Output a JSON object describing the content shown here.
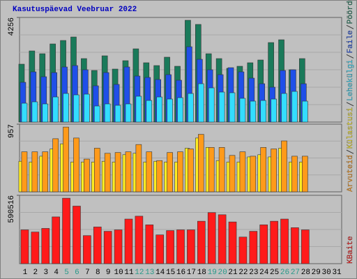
{
  "title": "Kasutuspäevad Veebruar 2022",
  "chart_data": [
    {
      "type": "bar",
      "ylim": [
        0,
        4256
      ],
      "yticks": [
        4256
      ],
      "series": [
        {
          "name": "Pöördumisi",
          "color": "#1a7a5a",
          "values": [
            2355,
            2894,
            2780,
            3178,
            3319,
            3461,
            2582,
            2099,
            2695,
            2156,
            2497,
            2979,
            2412,
            2298,
            2639,
            2270,
            4142,
            3972,
            2780,
            2582,
            2185,
            2270,
            2412,
            2525,
            3234,
            3348,
            2128,
            2582,
            null,
            null,
            null
          ]
        },
        {
          "name": "Faile",
          "color": "#1f4fe8",
          "values": [
            1617,
            2043,
            1844,
            2014,
            2241,
            2298,
            2128,
            1475,
            2014,
            1532,
            2241,
            1872,
            1816,
            1731,
            1929,
            1702,
            3064,
            2553,
            2128,
            1929,
            2213,
            2043,
            1787,
            1560,
            1419,
            2099,
            2128,
            1560,
            null,
            null,
            null
          ]
        },
        {
          "name": "Lehekülgi",
          "color": "#33ddff",
          "values": [
            766,
            823,
            738,
            1021,
            1163,
            1106,
            1135,
            653,
            738,
            681,
            738,
            1050,
            879,
            1021,
            936,
            993,
            1163,
            1560,
            1390,
            1220,
            1192,
            965,
            851,
            879,
            936,
            1163,
            1248,
            851,
            null,
            null,
            null
          ]
        }
      ]
    },
    {
      "type": "bar",
      "ylim": [
        0,
        957
      ],
      "yticks": [
        957
      ],
      "series": [
        {
          "name": "Külastusi",
          "color": "#ffee22",
          "values": [
            432,
            422,
            504,
            607,
            679,
            422,
            422,
            422,
            432,
            422,
            525,
            545,
            422,
            432,
            422,
            422,
            617,
            761,
            628,
            442,
            422,
            422,
            494,
            525,
            494,
            617,
            422,
            422,
            null,
            null,
            null
          ]
        },
        {
          "name": "Arvuteid",
          "color": "#ff9a1a",
          "values": [
            566,
            566,
            566,
            751,
            916,
            761,
            463,
            617,
            545,
            556,
            566,
            669,
            566,
            442,
            556,
            566,
            607,
            813,
            628,
            628,
            515,
            566,
            504,
            628,
            607,
            720,
            504,
            504,
            null,
            null,
            null
          ]
        }
      ]
    },
    {
      "type": "bar",
      "ylim": [
        0,
        590516
      ],
      "yticks": [
        590516
      ],
      "categories": [
        1,
        2,
        3,
        4,
        5,
        6,
        7,
        8,
        9,
        10,
        11,
        12,
        13,
        14,
        15,
        16,
        17,
        18,
        19,
        20,
        21,
        22,
        23,
        24,
        25,
        26,
        27,
        28,
        29,
        30,
        31
      ],
      "highlight_categories": [
        5,
        6,
        12,
        13,
        19,
        20,
        26,
        27
      ],
      "highlight_color": "#2a9a8a",
      "series": [
        {
          "name": "KBaite",
          "color": "#ff1a1a",
          "values": [
            292152,
            273504,
            304584,
            404040,
            565656,
            497280,
            242424,
            317016,
            279720,
            292152,
            385392,
            410256,
            335664,
            248640,
            285936,
            292152,
            292152,
            366744,
            441336,
            422688,
            360528,
            229992,
            279720,
            335664,
            366744,
            385392,
            310800,
            292152,
            null,
            null,
            null
          ]
        }
      ]
    }
  ]
}
